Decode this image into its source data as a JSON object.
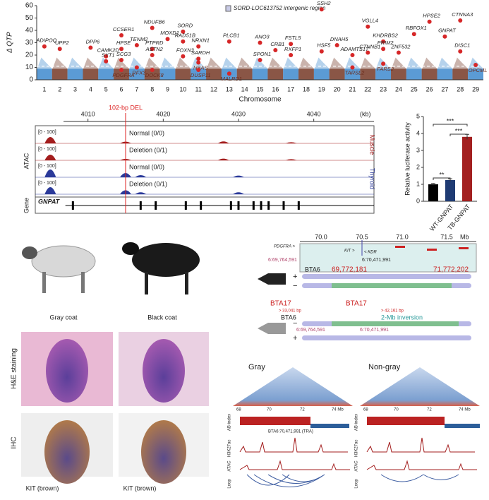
{
  "chart_data": [
    {
      "type": "manhattan",
      "ylabel": "Δ QTP",
      "xlabel": "Chromosome",
      "categories": [
        "1",
        "2",
        "3",
        "4",
        "5",
        "6",
        "7",
        "8",
        "9",
        "10",
        "11",
        "12",
        "13",
        "14",
        "15",
        "16",
        "17",
        "18",
        "19",
        "20",
        "21",
        "22",
        "23",
        "24",
        "25",
        "26",
        "27",
        "28",
        "29"
      ],
      "ylim": [
        0,
        60
      ],
      "yticks": [
        0,
        10,
        20,
        30,
        40,
        50,
        60
      ],
      "threshold": 11,
      "colors": [
        "#5b9bd5",
        "#8a5646"
      ],
      "highlight_color": "#d62728",
      "annotation": "SORD-LOC613752 intergenic region",
      "genes": {
        "names": [
          "ADIPOQ",
          "UPP2",
          "DPP6",
          "CAMK2D",
          "SYT1",
          "CCSER1",
          "HPSE",
          "SCG3",
          "PDGFRA",
          "TENM2",
          "RFX3",
          "NDUFB6",
          "PTPRD",
          "ASTN2",
          "DOCK8",
          "MOXD1",
          "SORD",
          "RAD51B",
          "FOXN3",
          "NRXN1",
          "SARDH",
          "NBAS",
          "DUSP11",
          "PLCB1",
          "MALRD1",
          "ANO3",
          "SPON1",
          "CRB1",
          "FSTL5",
          "RXFP1",
          "SSH2",
          "HSF5",
          "DNAH5",
          "ADAMTS17",
          "TARSL2",
          "VGLL4",
          "CTNNB1",
          "KHDRBS2",
          "PRIM2",
          "FARS2",
          "ZNF532",
          "RBFOX1",
          "HPSE2",
          "GNPAT",
          "CTNNA3",
          "DISC1",
          "OPCML"
        ],
        "chromosomes": [
          "1",
          "2",
          "4",
          "5",
          "5",
          "6",
          "6",
          "6",
          "6",
          "7",
          "7",
          "8",
          "8",
          "8",
          "8",
          "9",
          "10",
          "10",
          "10",
          "11",
          "11",
          "11",
          "11",
          "13",
          "13",
          "15",
          "15",
          "16",
          "17",
          "17",
          "19",
          "19",
          "20",
          "21",
          "21",
          "22",
          "22",
          "23",
          "23",
          "23",
          "24",
          "25",
          "26",
          "27",
          "28",
          "28",
          "29"
        ],
        "values": [
          27,
          25,
          26,
          19,
          15,
          36,
          25,
          16,
          8,
          28,
          10,
          42,
          25,
          20,
          8,
          33,
          39,
          31,
          19,
          27,
          17,
          14,
          8,
          31,
          5,
          30,
          16,
          24,
          29,
          20,
          57,
          23,
          28,
          20,
          10,
          43,
          22,
          31,
          25,
          13,
          22,
          37,
          47,
          35,
          48,
          23,
          12
        ]
      }
    },
    {
      "type": "genome-track",
      "xlim": [
        4003,
        4048
      ],
      "xticks": [
        4010,
        4020,
        4030,
        4040
      ],
      "x_unit": "(kb)",
      "deletion": {
        "label": "102-bp DEL",
        "x": 4015
      },
      "ylabel": "ATAC",
      "gene_label": "Gene",
      "gene": "GNPAT",
      "gene_span": [
        4007,
        4048
      ],
      "exons": [
        4008,
        4017,
        4019,
        4023,
        4025,
        4029,
        4030,
        4032,
        4033,
        4034,
        4036,
        4038
      ],
      "ylim": [
        0,
        100
      ],
      "groups": [
        {
          "name": "Muscle",
          "color": "#a31d1d",
          "tracks": [
            {
              "range": "[0 - 100]",
              "name": "Normal (0/0)",
              "peaks": {
                "x": [
                  4005,
                  4015,
                  4028,
                  4037
                ],
                "values": [
                  45,
                  12,
                  14,
                  8
                ]
              }
            },
            {
              "range": "[0 - 100]",
              "name": "Deletion (0/1)",
              "peaks": {
                "x": [
                  4005,
                  4015,
                  4028,
                  4037
                ],
                "values": [
                  40,
                  10,
                  12,
                  8
                ]
              }
            }
          ]
        },
        {
          "name": "Thyroid",
          "color": "#2b3a9a",
          "tracks": [
            {
              "range": "[0 - 100]",
              "name": "Normal (0/0)",
              "peaks": {
                "x": [
                  4005,
                  4015,
                  4017,
                  4030
                ],
                "values": [
                  55,
                  30,
                  15,
                  12
                ]
              }
            },
            {
              "range": "[0 - 100]",
              "name": "Deletion (0/1)",
              "peaks": {
                "x": [
                  4005,
                  4015,
                  4017,
                  4030
                ],
                "values": [
                  50,
                  28,
                  14,
                  14
                ]
              }
            }
          ]
        }
      ]
    },
    {
      "type": "bar",
      "ylabel": "Relative luciferase activity",
      "categories": [
        null,
        "WT-GNPAT",
        "TB-GNPAT"
      ],
      "values": [
        1.0,
        1.25,
        3.8
      ],
      "errors": [
        0.05,
        0.08,
        0.15
      ],
      "colors": [
        "#000000",
        "#1f3b73",
        "#a32020"
      ],
      "ylim": [
        0,
        5
      ],
      "yticks": [
        0,
        1,
        2,
        3,
        4,
        5
      ],
      "significance": [
        {
          "label": "**",
          "pair": [
            0,
            1
          ]
        },
        {
          "label": "***",
          "pair": [
            0,
            2
          ]
        },
        {
          "label": "***",
          "pair": [
            1,
            2
          ]
        }
      ]
    }
  ],
  "photos": {
    "coats": [
      "Gray coat",
      "Black coat"
    ],
    "he_label": "H&E staining",
    "ihc_label": "IHC",
    "ihc_captions": [
      "KIT (brown)",
      "KIT (brown)"
    ]
  },
  "inversion": {
    "axis": [
      "70.0",
      "70.5",
      "71.0",
      "71.5",
      "Mb"
    ],
    "genes": [
      "PDGFRA >",
      "KIT >",
      "< KDR"
    ],
    "marker": "6:70,471,991",
    "left_pos": "6:69,764,591",
    "chrom": "BTA6",
    "bp": [
      "69,772,181",
      "71,772,202"
    ],
    "strands": [
      "+",
      "−",
      "−",
      "+"
    ],
    "bta17": [
      "BTA17",
      "BTA17"
    ],
    "insert": [
      "> 33,041 bp",
      "> 42,161 bp"
    ],
    "bp2": [
      "6:69,764,591",
      "6:70,471,991"
    ],
    "label": "2-Mb inversion"
  },
  "hic": {
    "titles": [
      "Gray",
      "Non-gray"
    ],
    "axis": [
      "68",
      "70",
      "72",
      "74 Mb"
    ],
    "tracks": [
      "AB-index",
      "H3K27ac",
      "ATAC",
      "Loop"
    ],
    "callout": "BTA6:70,471,991 (TRA)"
  }
}
